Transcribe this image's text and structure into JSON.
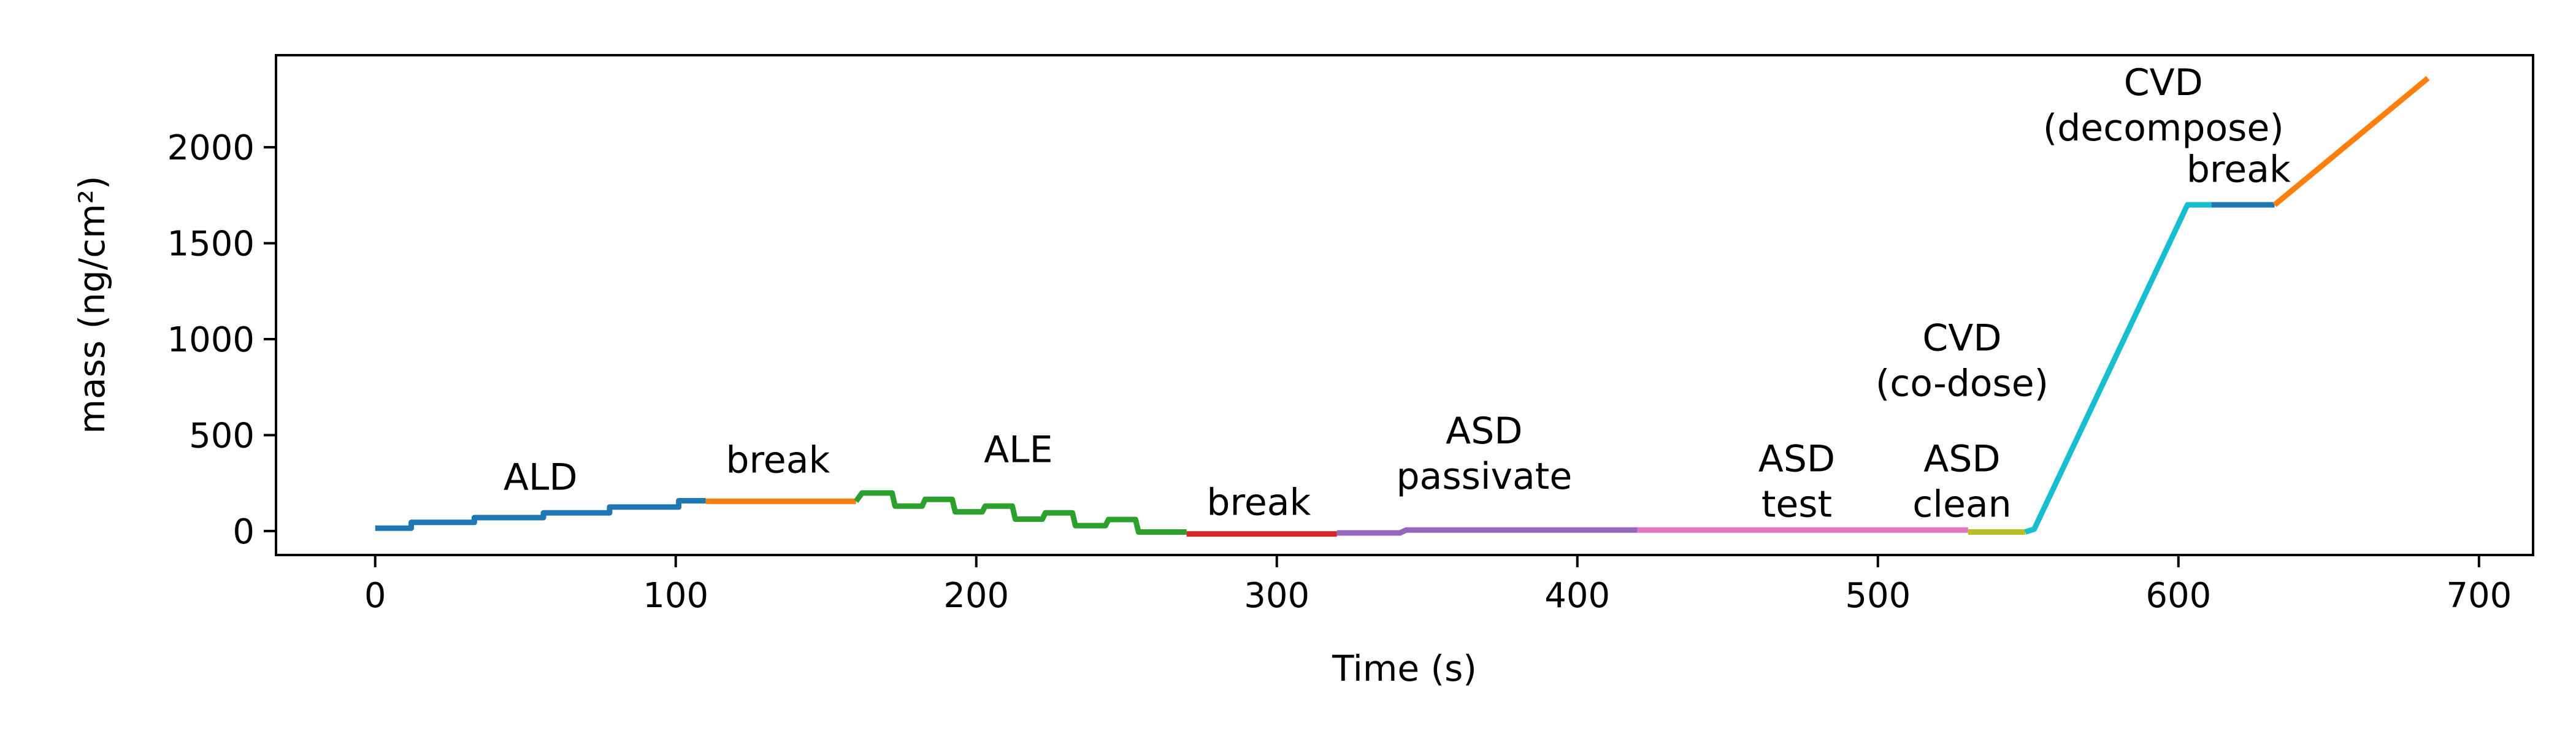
{
  "chart_data": {
    "type": "line",
    "xlabel": "Time (s)",
    "ylabel": "mass (ng/cm²)",
    "xlim": [
      -33,
      718
    ],
    "ylim": [
      -125,
      2480
    ],
    "xticks": [
      0,
      100,
      200,
      300,
      400,
      500,
      600,
      700
    ],
    "yticks": [
      0,
      500,
      1000,
      1500,
      2000
    ],
    "grid": false,
    "legend": "none",
    "series": [
      {
        "color": "#1f77b4",
        "points": [
          [
            0,
            15
          ],
          [
            12,
            15
          ],
          [
            12,
            45
          ],
          [
            33,
            45
          ],
          [
            33,
            70
          ],
          [
            56,
            70
          ],
          [
            56,
            95
          ],
          [
            78,
            95
          ],
          [
            78,
            125
          ],
          [
            101,
            125
          ],
          [
            101,
            158
          ],
          [
            110,
            158
          ]
        ]
      },
      {
        "color": "#ff7f0e",
        "points": [
          [
            110,
            155
          ],
          [
            160,
            155
          ]
        ]
      },
      {
        "color": "#2ca02c",
        "points": [
          [
            160,
            155
          ],
          [
            162,
            198
          ],
          [
            172,
            198
          ],
          [
            173,
            130
          ],
          [
            182,
            130
          ],
          [
            183,
            165
          ],
          [
            192,
            165
          ],
          [
            193,
            100
          ],
          [
            202,
            100
          ],
          [
            203,
            130
          ],
          [
            212,
            130
          ],
          [
            213,
            62
          ],
          [
            222,
            62
          ],
          [
            223,
            95
          ],
          [
            232,
            95
          ],
          [
            233,
            28
          ],
          [
            243,
            28
          ],
          [
            244,
            60
          ],
          [
            253,
            60
          ],
          [
            254,
            -5
          ],
          [
            262,
            -5
          ],
          [
            270,
            -5
          ]
        ]
      },
      {
        "color": "#d62728",
        "points": [
          [
            270,
            -15
          ],
          [
            320,
            -15
          ]
        ]
      },
      {
        "color": "#9467bd",
        "points": [
          [
            320,
            -10
          ],
          [
            341,
            -10
          ],
          [
            343,
            5
          ],
          [
            420,
            5
          ]
        ]
      },
      {
        "color": "#e377c2",
        "points": [
          [
            420,
            5
          ],
          [
            530,
            5
          ]
        ]
      },
      {
        "color": "#bcbd22",
        "points": [
          [
            530,
            -5
          ],
          [
            549,
            -5
          ]
        ]
      },
      {
        "color": "#17becf",
        "points": [
          [
            549,
            -5
          ],
          [
            552,
            10
          ],
          [
            603,
            1700
          ],
          [
            611,
            1700
          ]
        ]
      },
      {
        "color": "#1f77b4",
        "points": [
          [
            611,
            1700
          ],
          [
            632,
            1700
          ]
        ]
      },
      {
        "color": "#ff7f0e",
        "points": [
          [
            632,
            1700
          ],
          [
            683,
            2360
          ]
        ]
      }
    ],
    "annotations": [
      {
        "lines": [
          "ALD"
        ],
        "x": 55,
        "y": 215
      },
      {
        "lines": [
          "break"
        ],
        "x": 134,
        "y": 305
      },
      {
        "lines": [
          "ALE"
        ],
        "x": 214,
        "y": 360
      },
      {
        "lines": [
          "break"
        ],
        "x": 294,
        "y": 85
      },
      {
        "lines": [
          "ASD",
          "passivate"
        ],
        "x": 369,
        "y": 220
      },
      {
        "lines": [
          "ASD",
          "test"
        ],
        "x": 473,
        "y": 75
      },
      {
        "lines": [
          "ASD",
          "clean"
        ],
        "x": 528,
        "y": 75
      },
      {
        "lines": [
          "CVD",
          "(co-dose)"
        ],
        "x": 528,
        "y": 705
      },
      {
        "lines": [
          "CVD",
          "(decompose)"
        ],
        "x": 595,
        "y": 2035
      },
      {
        "lines": [
          "break"
        ],
        "x": 620,
        "y": 1820
      }
    ]
  }
}
